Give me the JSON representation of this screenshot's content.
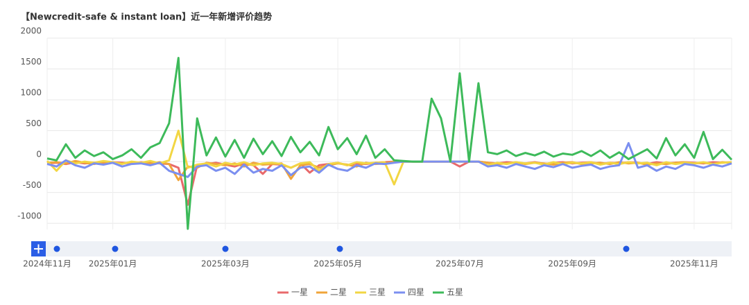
{
  "chart_data": {
    "type": "line",
    "title": "【Newcredit-safe & instant loan】近一年新增评价趋势",
    "categories": [
      "2024年11月",
      null,
      null,
      null,
      null,
      null,
      null,
      "2025年01月",
      null,
      null,
      null,
      null,
      null,
      null,
      null,
      null,
      null,
      null,
      null,
      "2025年03月",
      null,
      null,
      null,
      null,
      null,
      null,
      null,
      null,
      null,
      null,
      null,
      "2025年05月",
      null,
      null,
      null,
      null,
      null,
      null,
      null,
      null,
      null,
      null,
      null,
      null,
      "2025年07月",
      null,
      null,
      null,
      null,
      null,
      null,
      null,
      null,
      null,
      null,
      null,
      "2025年09月",
      null,
      null,
      null,
      null,
      null,
      null,
      null,
      null,
      null,
      null,
      null,
      null,
      "2025年11月",
      null,
      null,
      null,
      null
    ],
    "ylim": [
      -1100,
      2000
    ],
    "yticks": [
      -1000,
      -500,
      0,
      500,
      1000,
      1500,
      2000
    ],
    "grid": true,
    "series": [
      {
        "name": "一星",
        "color": "#e8696b",
        "values": [
          -30,
          -20,
          -40,
          -10,
          -30,
          -20,
          -40,
          -10,
          -20,
          -30,
          -10,
          -20,
          -30,
          -40,
          -100,
          -700,
          -60,
          -40,
          -20,
          -50,
          -80,
          -30,
          -60,
          -200,
          -40,
          -50,
          -100,
          -30,
          -180,
          -60,
          -40,
          -20,
          -60,
          -30,
          -40,
          -20,
          -10,
          0,
          0,
          0,
          0,
          0,
          0,
          0,
          -80,
          0,
          0,
          -20,
          -30,
          -10,
          -20,
          -30,
          -10,
          -40,
          -20,
          -10,
          -30,
          -20,
          -10,
          -40,
          -20,
          -30,
          -10,
          -20,
          -40,
          -10,
          -30,
          -20,
          -10,
          -20,
          -30,
          -10,
          -20,
          -10
        ]
      },
      {
        "name": "二星",
        "color": "#f0a43a",
        "values": [
          -20,
          -10,
          -30,
          10,
          -20,
          -40,
          -10,
          -20,
          -30,
          -10,
          -20,
          -30,
          -10,
          -40,
          -300,
          -80,
          -100,
          -20,
          -40,
          -60,
          -30,
          -80,
          -20,
          -50,
          -40,
          -30,
          -280,
          -60,
          -40,
          -100,
          -60,
          -30,
          -50,
          -80,
          -20,
          -40,
          -30,
          0,
          0,
          0,
          0,
          0,
          0,
          0,
          0,
          0,
          0,
          -20,
          -40,
          -30,
          -10,
          -40,
          -20,
          -30,
          -50,
          -20,
          -10,
          -40,
          -30,
          -20,
          -40,
          -10,
          -30,
          -20,
          -50,
          -30,
          -40,
          -20,
          -10,
          -30,
          -20,
          -40,
          -10,
          -20
        ]
      },
      {
        "name": "三星",
        "color": "#f2d643",
        "values": [
          10,
          -150,
          20,
          -30,
          0,
          -20,
          10,
          -10,
          -40,
          0,
          -20,
          10,
          -30,
          20,
          500,
          -100,
          -50,
          -30,
          -80,
          -20,
          -50,
          -10,
          -60,
          -30,
          -20,
          -40,
          -100,
          -30,
          -10,
          -150,
          -40,
          -20,
          -60,
          -10,
          -30,
          -20,
          -10,
          -370,
          0,
          0,
          0,
          0,
          0,
          0,
          0,
          0,
          0,
          -60,
          -20,
          -40,
          -10,
          -30,
          -20,
          -50,
          -10,
          -40,
          -20,
          -30,
          -10,
          -50,
          -20,
          -40,
          -10,
          -30,
          -20,
          -60,
          -10,
          -40,
          -20,
          -30,
          -10,
          -40,
          -20,
          -10
        ]
      },
      {
        "name": "四星",
        "color": "#7b8ff0",
        "values": [
          -40,
          -80,
          20,
          -60,
          -100,
          -30,
          -50,
          -20,
          -80,
          -40,
          -30,
          -60,
          -20,
          -150,
          -200,
          -250,
          -80,
          -60,
          -150,
          -100,
          -200,
          -50,
          -180,
          -120,
          -150,
          -60,
          -220,
          -100,
          -80,
          -180,
          -50,
          -120,
          -150,
          -60,
          -100,
          -30,
          -40,
          -20,
          0,
          0,
          0,
          0,
          0,
          0,
          0,
          0,
          0,
          -80,
          -60,
          -100,
          -40,
          -80,
          -120,
          -60,
          -90,
          -40,
          -100,
          -70,
          -50,
          -120,
          -80,
          -60,
          300,
          -100,
          -60,
          -150,
          -80,
          -120,
          -40,
          -60,
          -100,
          -50,
          -80,
          -30
        ]
      },
      {
        "name": "五星",
        "color": "#3dba5a",
        "values": [
          50,
          20,
          280,
          60,
          180,
          90,
          150,
          40,
          100,
          200,
          60,
          230,
          300,
          620,
          1680,
          -1090,
          700,
          100,
          390,
          80,
          350,
          60,
          370,
          120,
          330,
          90,
          400,
          150,
          320,
          100,
          560,
          200,
          380,
          120,
          420,
          60,
          200,
          20,
          10,
          0,
          0,
          1020,
          700,
          0,
          1430,
          0,
          1270,
          150,
          120,
          180,
          90,
          140,
          100,
          160,
          80,
          130,
          110,
          170,
          90,
          180,
          60,
          150,
          40,
          120,
          200,
          50,
          380,
          100,
          280,
          60,
          480,
          40,
          190,
          30
        ]
      }
    ]
  }
}
